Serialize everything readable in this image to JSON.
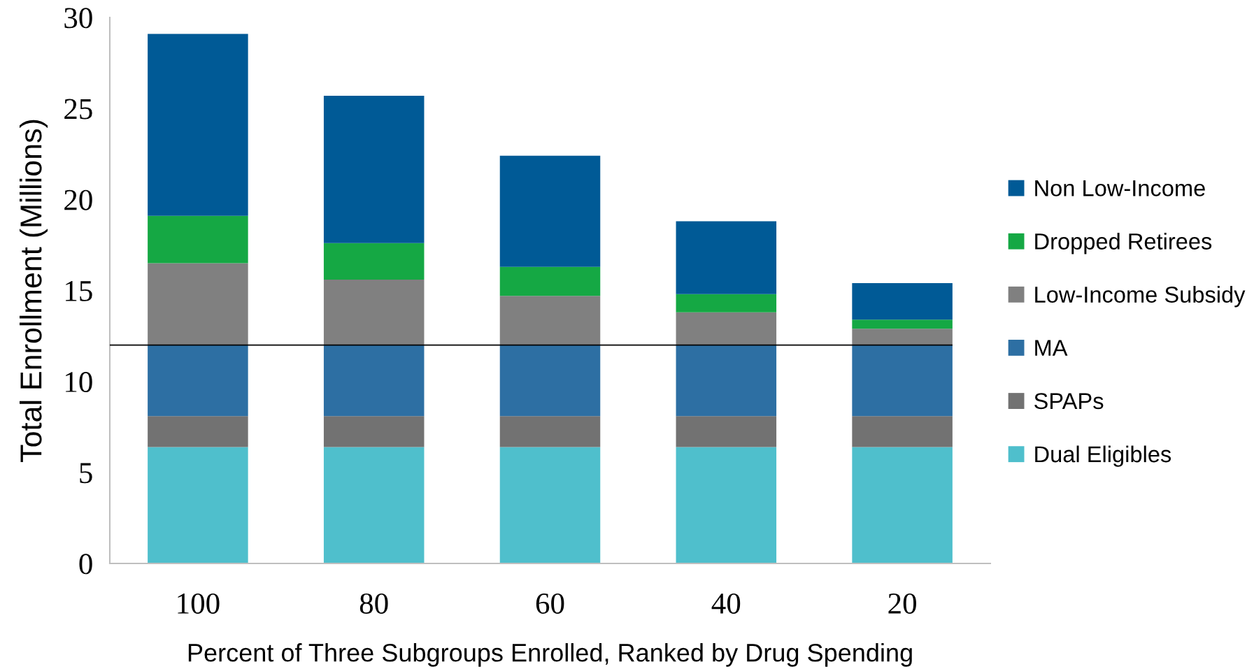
{
  "chart_data": {
    "type": "bar",
    "stacked": true,
    "ylabel": "Total Enrollment (Millions)",
    "xlabel": "Percent of Three Subgroups Enrolled, Ranked by Drug Spending",
    "categories": [
      "100",
      "80",
      "60",
      "40",
      "20"
    ],
    "series": [
      {
        "name": "Dual Eligibles",
        "color": "#4fbfcc",
        "values": [
          6.4,
          6.4,
          6.4,
          6.4,
          6.4
        ]
      },
      {
        "name": "SPAPs",
        "color": "#727272",
        "values": [
          1.7,
          1.7,
          1.7,
          1.7,
          1.7
        ]
      },
      {
        "name": "MA",
        "color": "#2d6fa3",
        "values": [
          3.9,
          3.9,
          3.9,
          3.9,
          3.9
        ]
      },
      {
        "name": "Low-Income Subsidy",
        "color": "#808080",
        "values": [
          4.5,
          3.6,
          2.7,
          1.8,
          0.9
        ]
      },
      {
        "name": "Dropped Retirees",
        "color": "#15a844",
        "values": [
          2.6,
          2.0,
          1.6,
          1.0,
          0.5
        ]
      },
      {
        "name": "Non Low-Income",
        "color": "#005a96",
        "values": [
          10.0,
          8.1,
          6.1,
          4.0,
          2.0
        ]
      }
    ],
    "ylim": [
      0,
      30
    ],
    "yticks": [
      0,
      5,
      10,
      15,
      20,
      25,
      30
    ],
    "legend": "right",
    "ref_lines": [
      {
        "axis": "y",
        "value": 12,
        "color": "#000000"
      }
    ]
  }
}
